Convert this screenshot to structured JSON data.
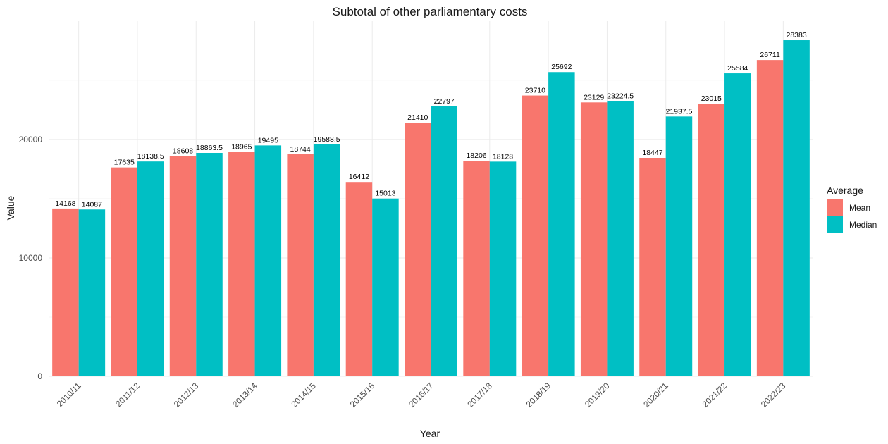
{
  "chart_data": {
    "type": "bar",
    "title": "Subtotal of other parliamentary costs",
    "xlabel": "Year",
    "ylabel": "Value",
    "categories": [
      "2010/11",
      "2011/12",
      "2012/13",
      "2013/14",
      "2014/15",
      "2015/16",
      "2016/17",
      "2017/18",
      "2018/19",
      "2019/20",
      "2020/21",
      "2021/22",
      "2022/23"
    ],
    "series": [
      {
        "name": "Mean",
        "color": "#F8766D",
        "values": [
          14168,
          17635,
          18608,
          18965,
          18744,
          16412,
          21410,
          18206,
          23710,
          23129,
          18447,
          23015,
          26711
        ]
      },
      {
        "name": "Median",
        "color": "#00BFC4",
        "values": [
          14087,
          18138.5,
          18863.5,
          19495,
          19588.5,
          15013,
          22797,
          18128,
          25692,
          23224.5,
          21937.5,
          25584,
          28383
        ]
      }
    ],
    "data_labels": {
      "Mean": [
        "14168",
        "17635",
        "18608",
        "18965",
        "18744",
        "16412",
        "21410",
        "18206",
        "23710",
        "23129",
        "18447",
        "23015",
        "26711"
      ],
      "Median": [
        "14087",
        "18138.5",
        "18863.5",
        "19495",
        "19588.5",
        "15013",
        "22797",
        "18128",
        "25692",
        "23224.5",
        "21937.5",
        "25584",
        "28383"
      ]
    },
    "yticks": [
      0,
      10000,
      20000
    ],
    "ylim": [
      0,
      30000
    ],
    "legend": {
      "title": "Average",
      "position": "right"
    },
    "grid": true
  }
}
